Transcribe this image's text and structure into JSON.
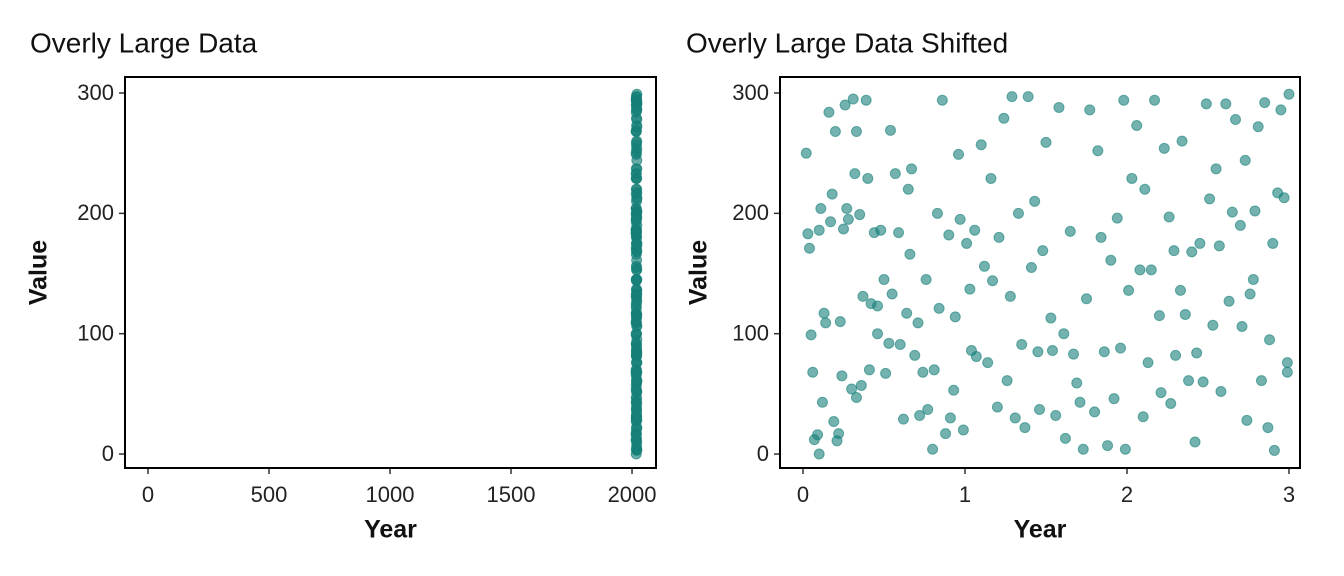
{
  "chart_data": [
    {
      "type": "scatter",
      "title": "Overly Large Data",
      "xlabel": "Year",
      "ylabel": "Value",
      "color": "#157f78",
      "alpha": 0.65,
      "xlim": [
        -95,
        2099
      ],
      "ylim": [
        -11.6,
        313.3
      ],
      "xticks": [
        0,
        500,
        1000,
        1500,
        2000
      ],
      "yticks": [
        0,
        100,
        200,
        300
      ],
      "x": [
        2017.02,
        2017.03,
        2017.04,
        2017.05,
        2017.06,
        2017.07,
        2017.09,
        2017.1,
        2017.1,
        2017.11,
        2017.12,
        2017.13,
        2017.14,
        2017.16,
        2017.17,
        2017.18,
        2017.19,
        2017.2,
        2017.21,
        2017.22,
        2017.23,
        2017.24,
        2017.25,
        2017.26,
        2017.27,
        2017.28,
        2017.3,
        2017.31,
        2017.32,
        2017.33,
        2017.33,
        2017.35,
        2017.36,
        2017.37,
        2017.39,
        2017.4,
        2017.41,
        2017.42,
        2017.44,
        2017.46,
        2017.46,
        2017.48,
        2017.5,
        2017.51,
        2017.53,
        2017.54,
        2017.55,
        2017.57,
        2017.59,
        2017.6,
        2017.62,
        2017.64,
        2017.65,
        2017.66,
        2017.67,
        2017.69,
        2017.71,
        2017.72,
        2017.74,
        2017.76,
        2017.77,
        2017.8,
        2017.81,
        2017.83,
        2017.84,
        2017.86,
        2017.88,
        2017.9,
        2017.91,
        2017.93,
        2017.94,
        2017.96,
        2017.97,
        2017.99,
        2018.01,
        2018.03,
        2018.04,
        2018.06,
        2018.07,
        2018.1,
        2018.12,
        2018.14,
        2018.16,
        2018.17,
        2018.2,
        2018.21,
        2018.24,
        2018.26,
        2018.28,
        2018.29,
        2018.31,
        2018.33,
        2018.35,
        2018.37,
        2018.39,
        2018.41,
        2018.43,
        2018.45,
        2018.46,
        2018.48,
        2018.5,
        2018.53,
        2018.54,
        2018.56,
        2018.58,
        2018.61,
        2018.62,
        2018.65,
        2018.67,
        2018.69,
        2018.71,
        2018.73,
        2018.75,
        2018.77,
        2018.8,
        2018.82,
        2018.84,
        2018.86,
        2018.88,
        2018.9,
        2018.92,
        2018.94,
        2018.96,
        2018.98,
        2018.99,
        2019.01,
        2019.03,
        2019.06,
        2019.08,
        2019.1,
        2019.11,
        2019.13,
        2019.15,
        2019.17,
        2019.2,
        2019.21,
        2019.23,
        2019.26,
        2019.27,
        2019.29,
        2019.3,
        2019.33,
        2019.34,
        2019.36,
        2019.38,
        2019.4,
        2019.42,
        2019.43,
        2019.45,
        2019.47,
        2019.49,
        2019.51,
        2019.53,
        2019.55,
        2019.57,
        2019.58,
        2019.61,
        2019.63,
        2019.65,
        2019.67,
        2019.7,
        2019.71,
        2019.73,
        2019.74,
        2019.76,
        2019.78,
        2019.79,
        2019.81,
        2019.83,
        2019.85,
        2019.87,
        2019.88,
        2019.9,
        2019.91,
        2019.93,
        2019.95,
        2019.97,
        2019.99,
        2020.0,
        2019.99
      ],
      "y": [
        250,
        183,
        171,
        99,
        68,
        12,
        16,
        0,
        186,
        204,
        43,
        117,
        109,
        284,
        193,
        216,
        27,
        268,
        11,
        17,
        110,
        65,
        187,
        290,
        204,
        195,
        54,
        295,
        233,
        47,
        268,
        199,
        57,
        131,
        294,
        229,
        70,
        125,
        184,
        100,
        123,
        186,
        145,
        67,
        92,
        269,
        133,
        233,
        184,
        91,
        29,
        117,
        220,
        166,
        237,
        82,
        109,
        32,
        68,
        145,
        37,
        4,
        70,
        200,
        121,
        294,
        17,
        182,
        30,
        53,
        114,
        249,
        195,
        20,
        175,
        137,
        86,
        186,
        81,
        257,
        156,
        76,
        229,
        144,
        39,
        180,
        279,
        61,
        131,
        297,
        30,
        200,
        91,
        22,
        297,
        155,
        210,
        85,
        37,
        169,
        259,
        113,
        86,
        32,
        288,
        100,
        13,
        185,
        83,
        59,
        43,
        4,
        129,
        286,
        35,
        252,
        180,
        85,
        7,
        161,
        46,
        196,
        88,
        294,
        4,
        136,
        229,
        273,
        153,
        31,
        220,
        76,
        153,
        294,
        115,
        51,
        254,
        197,
        42,
        169,
        82,
        136,
        260,
        116,
        61,
        168,
        10,
        84,
        175,
        60,
        291,
        212,
        107,
        237,
        173,
        52,
        291,
        127,
        201,
        278,
        190,
        106,
        244,
        28,
        133,
        145,
        202,
        272,
        61,
        292,
        22,
        95,
        175,
        3,
        217,
        286,
        213,
        76,
        299,
        68
      ]
    },
    {
      "type": "scatter",
      "title": "Overly Large Data Shifted",
      "xlabel": "Year",
      "ylabel": "Value",
      "color": "#157f78",
      "alpha": 0.6,
      "xlim": [
        -0.142,
        3.068
      ],
      "ylim": [
        -11.6,
        313.3
      ],
      "xticks": [
        0,
        1,
        2,
        3
      ],
      "yticks": [
        0,
        100,
        200,
        300
      ],
      "x": [
        0.02,
        0.03,
        0.04,
        0.05,
        0.06,
        0.07,
        0.09,
        0.1,
        0.1,
        0.11,
        0.12,
        0.13,
        0.14,
        0.16,
        0.17,
        0.18,
        0.19,
        0.2,
        0.21,
        0.22,
        0.23,
        0.24,
        0.25,
        0.26,
        0.27,
        0.28,
        0.3,
        0.31,
        0.32,
        0.33,
        0.33,
        0.35,
        0.36,
        0.37,
        0.39,
        0.4,
        0.41,
        0.42,
        0.44,
        0.46,
        0.46,
        0.48,
        0.5,
        0.51,
        0.53,
        0.54,
        0.55,
        0.57,
        0.59,
        0.6,
        0.62,
        0.64,
        0.65,
        0.66,
        0.67,
        0.69,
        0.71,
        0.72,
        0.74,
        0.76,
        0.77,
        0.8,
        0.81,
        0.83,
        0.84,
        0.86,
        0.88,
        0.9,
        0.91,
        0.93,
        0.94,
        0.96,
        0.97,
        0.99,
        1.01,
        1.03,
        1.04,
        1.06,
        1.07,
        1.1,
        1.12,
        1.14,
        1.16,
        1.17,
        1.2,
        1.21,
        1.24,
        1.26,
        1.28,
        1.29,
        1.31,
        1.33,
        1.35,
        1.37,
        1.39,
        1.41,
        1.43,
        1.45,
        1.46,
        1.48,
        1.5,
        1.53,
        1.54,
        1.56,
        1.58,
        1.61,
        1.62,
        1.65,
        1.67,
        1.69,
        1.71,
        1.73,
        1.75,
        1.77,
        1.8,
        1.82,
        1.84,
        1.86,
        1.88,
        1.9,
        1.92,
        1.94,
        1.96,
        1.98,
        1.99,
        2.01,
        2.03,
        2.06,
        2.08,
        2.1,
        2.11,
        2.13,
        2.15,
        2.17,
        2.2,
        2.21,
        2.23,
        2.26,
        2.27,
        2.29,
        2.3,
        2.33,
        2.34,
        2.36,
        2.38,
        2.4,
        2.42,
        2.43,
        2.45,
        2.47,
        2.49,
        2.51,
        2.53,
        2.55,
        2.57,
        2.58,
        2.61,
        2.63,
        2.65,
        2.67,
        2.7,
        2.71,
        2.73,
        2.74,
        2.76,
        2.78,
        2.79,
        2.81,
        2.83,
        2.85,
        2.87,
        2.88,
        2.9,
        2.91,
        2.93,
        2.95,
        2.97,
        2.99,
        3.0,
        2.99
      ],
      "y": [
        250,
        183,
        171,
        99,
        68,
        12,
        16,
        0,
        186,
        204,
        43,
        117,
        109,
        284,
        193,
        216,
        27,
        268,
        11,
        17,
        110,
        65,
        187,
        290,
        204,
        195,
        54,
        295,
        233,
        47,
        268,
        199,
        57,
        131,
        294,
        229,
        70,
        125,
        184,
        100,
        123,
        186,
        145,
        67,
        92,
        269,
        133,
        233,
        184,
        91,
        29,
        117,
        220,
        166,
        237,
        82,
        109,
        32,
        68,
        145,
        37,
        4,
        70,
        200,
        121,
        294,
        17,
        182,
        30,
        53,
        114,
        249,
        195,
        20,
        175,
        137,
        86,
        186,
        81,
        257,
        156,
        76,
        229,
        144,
        39,
        180,
        279,
        61,
        131,
        297,
        30,
        200,
        91,
        22,
        297,
        155,
        210,
        85,
        37,
        169,
        259,
        113,
        86,
        32,
        288,
        100,
        13,
        185,
        83,
        59,
        43,
        4,
        129,
        286,
        35,
        252,
        180,
        85,
        7,
        161,
        46,
        196,
        88,
        294,
        4,
        136,
        229,
        273,
        153,
        31,
        220,
        76,
        153,
        294,
        115,
        51,
        254,
        197,
        42,
        169,
        82,
        136,
        260,
        116,
        61,
        168,
        10,
        84,
        175,
        60,
        291,
        212,
        107,
        237,
        173,
        52,
        291,
        127,
        201,
        278,
        190,
        106,
        244,
        28,
        133,
        145,
        202,
        272,
        61,
        292,
        22,
        95,
        175,
        3,
        217,
        286,
        213,
        76,
        299,
        68
      ]
    }
  ]
}
